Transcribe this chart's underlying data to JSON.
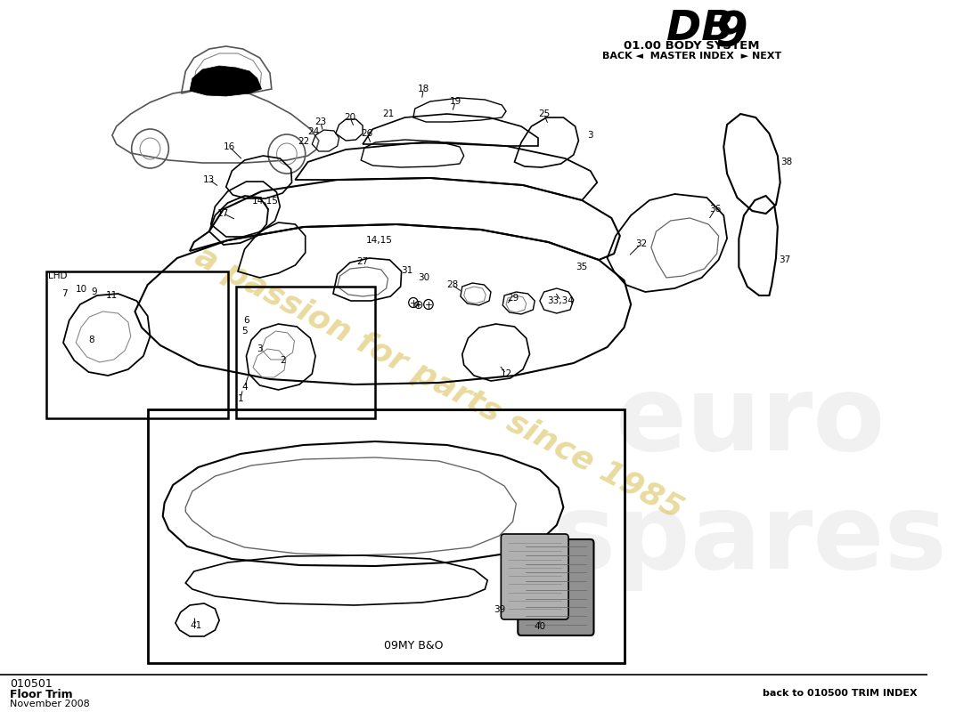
{
  "title_db": "DB",
  "title_9": "9",
  "subtitle": "01.00 BODY SYSTEM",
  "nav": "BACK ◄  MASTER INDEX  ► NEXT",
  "part_number": "010501",
  "part_name": "Floor Trim",
  "date": "November 2008",
  "back_link": "back to 010500 TRIM INDEX",
  "bottom_label": "09MY B&O",
  "background_color": "#ffffff",
  "watermark_text": "a passion for parts since 1985",
  "watermark_color": "#d4b840",
  "watermark_alpha": 0.5,
  "brand_wm_color": "#c8c8c8",
  "brand_wm_alpha": 0.25
}
